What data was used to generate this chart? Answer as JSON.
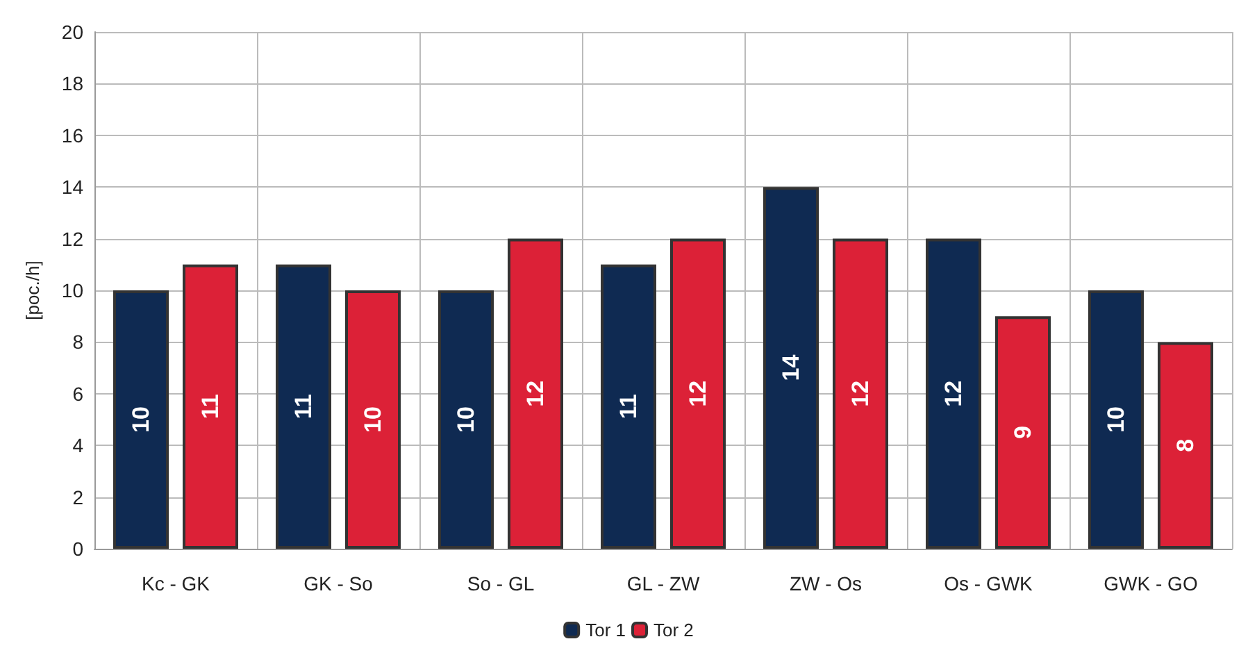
{
  "chart_data": {
    "type": "bar",
    "ylabel": "[poc./h]",
    "categories": [
      "Kc - GK",
      "GK - So",
      "So - GL",
      "GL - ZW",
      "ZW - Os",
      "Os - GWK",
      "GWK - GO"
    ],
    "series": [
      {
        "name": "Tor 1",
        "color": "#0f2a52",
        "values": [
          10,
          11,
          10,
          11,
          14,
          12,
          10
        ]
      },
      {
        "name": "Tor 2",
        "color": "#dc2137",
        "values": [
          11,
          10,
          12,
          12,
          12,
          9,
          8
        ]
      }
    ],
    "ylim": [
      0,
      20
    ],
    "yticks": [
      0,
      2,
      4,
      6,
      8,
      10,
      12,
      14,
      16,
      18,
      20
    ],
    "grid": true,
    "legend": "bottom",
    "data_labels": true
  }
}
